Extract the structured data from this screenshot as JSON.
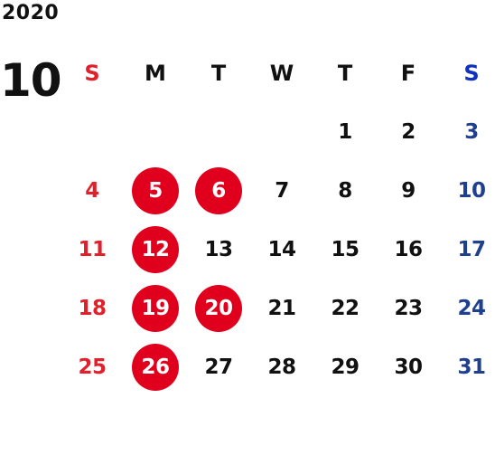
{
  "year": "2020",
  "month": "10",
  "colors": {
    "sunday": "#e0202a",
    "saturday": "#1f3f8f",
    "saturday_header": "#1030c0",
    "holiday_bg": "#e0001e",
    "text": "#111111"
  },
  "weekdays": [
    "S",
    "M",
    "T",
    "W",
    "T",
    "F",
    "S"
  ],
  "weeks": [
    [
      "",
      "",
      "",
      "",
      "1",
      "2",
      "3"
    ],
    [
      "4",
      "5",
      "6",
      "7",
      "8",
      "9",
      "10"
    ],
    [
      "11",
      "12",
      "13",
      "14",
      "15",
      "16",
      "17"
    ],
    [
      "18",
      "19",
      "20",
      "21",
      "22",
      "23",
      "24"
    ],
    [
      "25",
      "26",
      "27",
      "28",
      "29",
      "30",
      "31"
    ]
  ],
  "holidays": [
    "5",
    "6",
    "12",
    "19",
    "20",
    "26"
  ]
}
